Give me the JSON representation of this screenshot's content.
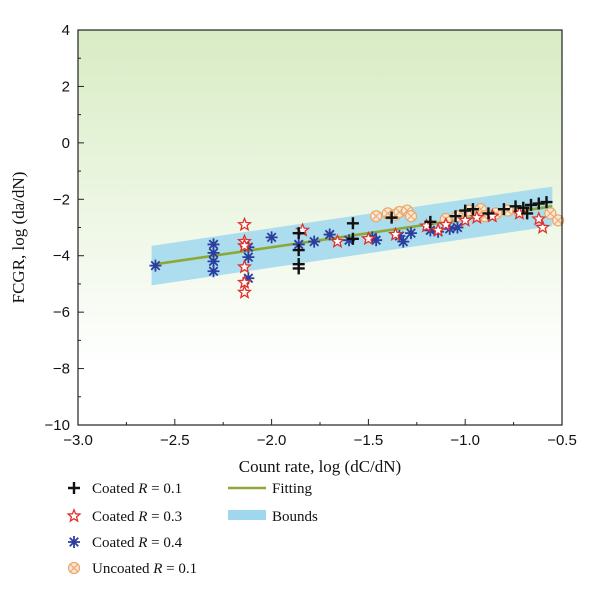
{
  "chart_data": {
    "type": "scatter",
    "xlabel": "Count rate, log (dC/dN)",
    "ylabel": "FCGR, log (da/dN)",
    "xlim": [
      -3.0,
      -0.5
    ],
    "ylim": [
      -10,
      4
    ],
    "x_ticks": [
      "−3.0",
      "−2.5",
      "−2.0",
      "−1.5",
      "−1.0",
      "−0.5"
    ],
    "y_ticks": [
      "4",
      "2",
      "0",
      "−2",
      "−4",
      "−6",
      "−8",
      "−10"
    ],
    "series": [
      {
        "name": "Coated R = 0.1",
        "legend_prefix": "Coated ",
        "legend_var": "R",
        "legend_suffix": " = 0.1",
        "marker": "plus",
        "color": "#111111",
        "points": [
          [
            -1.86,
            -3.2
          ],
          [
            -1.86,
            -3.8
          ],
          [
            -1.86,
            -4.3
          ],
          [
            -1.86,
            -4.45
          ],
          [
            -1.58,
            -2.85
          ],
          [
            -1.58,
            -3.4
          ],
          [
            -1.38,
            -2.65
          ],
          [
            -1.18,
            -2.8
          ],
          [
            -1.05,
            -2.6
          ],
          [
            -1.0,
            -2.4
          ],
          [
            -0.96,
            -2.35
          ],
          [
            -0.88,
            -2.5
          ],
          [
            -0.8,
            -2.35
          ],
          [
            -0.74,
            -2.25
          ],
          [
            -0.7,
            -2.3
          ],
          [
            -0.66,
            -2.2
          ],
          [
            -0.62,
            -2.15
          ],
          [
            -0.58,
            -2.1
          ],
          [
            -0.68,
            -2.5
          ]
        ]
      },
      {
        "name": "Coated R = 0.3",
        "legend_prefix": "Coated ",
        "legend_var": "R",
        "legend_suffix": " = 0.3",
        "marker": "star",
        "color": "#e0302a",
        "points": [
          [
            -2.14,
            -2.9
          ],
          [
            -2.14,
            -3.5
          ],
          [
            -2.14,
            -3.65
          ],
          [
            -2.14,
            -4.4
          ],
          [
            -2.14,
            -4.95
          ],
          [
            -2.14,
            -5.3
          ],
          [
            -1.84,
            -3.1
          ],
          [
            -1.66,
            -3.5
          ],
          [
            -1.5,
            -3.4
          ],
          [
            -1.36,
            -3.25
          ],
          [
            -1.2,
            -2.95
          ],
          [
            -1.14,
            -3.1
          ],
          [
            -1.1,
            -2.9
          ],
          [
            -1.0,
            -2.75
          ],
          [
            -0.94,
            -2.65
          ],
          [
            -0.86,
            -2.6
          ],
          [
            -0.72,
            -2.5
          ],
          [
            -0.6,
            -3.0
          ],
          [
            -0.62,
            -2.7
          ]
        ]
      },
      {
        "name": "Coated R = 0.4",
        "legend_prefix": "Coated ",
        "legend_var": "R",
        "legend_suffix": " = 0.4",
        "marker": "asterisk",
        "color": "#2b3e9e",
        "points": [
          [
            -2.6,
            -4.35
          ],
          [
            -2.3,
            -3.6
          ],
          [
            -2.3,
            -3.9
          ],
          [
            -2.3,
            -4.2
          ],
          [
            -2.3,
            -4.55
          ],
          [
            -2.12,
            -3.7
          ],
          [
            -2.12,
            -4.05
          ],
          [
            -2.12,
            -4.8
          ],
          [
            -2.0,
            -3.35
          ],
          [
            -1.86,
            -3.6
          ],
          [
            -1.78,
            -3.5
          ],
          [
            -1.7,
            -3.25
          ],
          [
            -1.6,
            -3.45
          ],
          [
            -1.48,
            -3.35
          ],
          [
            -1.46,
            -3.45
          ],
          [
            -1.34,
            -3.3
          ],
          [
            -1.32,
            -3.5
          ],
          [
            -1.28,
            -3.2
          ],
          [
            -1.18,
            -3.1
          ],
          [
            -1.14,
            -3.15
          ],
          [
            -1.08,
            -3.05
          ],
          [
            -1.04,
            -3.0
          ]
        ]
      },
      {
        "name": "Uncoated R = 0.1",
        "legend_prefix": "Uncoated ",
        "legend_var": "R",
        "legend_suffix": " = 0.1",
        "marker": "circle-x",
        "color": "#e8a86c",
        "points": [
          [
            -1.46,
            -2.6
          ],
          [
            -1.4,
            -2.5
          ],
          [
            -1.36,
            -2.55
          ],
          [
            -1.34,
            -2.45
          ],
          [
            -1.3,
            -2.4
          ],
          [
            -1.28,
            -2.6
          ],
          [
            -1.1,
            -2.7
          ],
          [
            -1.04,
            -2.6
          ],
          [
            -0.98,
            -2.4
          ],
          [
            -0.92,
            -2.35
          ],
          [
            -0.9,
            -2.6
          ],
          [
            -0.84,
            -2.5
          ],
          [
            -0.78,
            -2.4
          ],
          [
            -0.72,
            -2.45
          ],
          [
            -0.56,
            -2.5
          ],
          [
            -0.52,
            -2.75
          ]
        ]
      }
    ],
    "fit": {
      "name": "Fitting",
      "color": "#8fa835",
      "points": [
        [
          -2.6,
          -4.3
        ],
        [
          -0.55,
          -2.25
        ]
      ]
    },
    "bounds": {
      "name": "Bounds",
      "color": "#9fd8ee",
      "upper": [
        [
          -2.62,
          -3.65
        ],
        [
          -0.55,
          -1.55
        ]
      ],
      "lower": [
        [
          -2.62,
          -5.05
        ],
        [
          -0.55,
          -2.95
        ]
      ]
    },
    "background": {
      "gradient_top": "#d8ecc4",
      "gradient_bottom": "#ffffff"
    },
    "legend": {
      "placement": "bottom-left",
      "columns": 2
    }
  }
}
